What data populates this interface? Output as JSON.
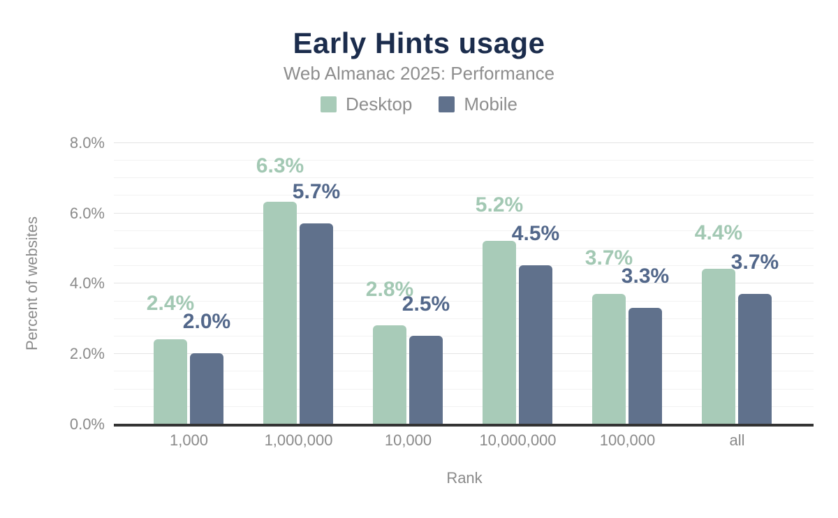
{
  "header": {
    "title": "Early Hints usage",
    "subtitle": "Web Almanac 2025: Performance"
  },
  "chart_data": {
    "type": "bar",
    "title": "Early Hints usage",
    "subtitle": "Web Almanac 2025: Performance",
    "xlabel": "Rank",
    "ylabel": "Percent of websites",
    "categories": [
      "1,000",
      "1,000,000",
      "10,000",
      "10,000,000",
      "100,000",
      "all"
    ],
    "series": [
      {
        "name": "Desktop",
        "color": "#a8cbb8",
        "label_color": "#a2c8b3",
        "values": [
          2.4,
          6.3,
          2.8,
          5.2,
          3.7,
          4.4
        ],
        "labels": [
          "2.4%",
          "6.3%",
          "2.8%",
          "5.2%",
          "3.7%",
          "4.4%"
        ]
      },
      {
        "name": "Mobile",
        "color": "#60718c",
        "label_color": "#52678a",
        "values": [
          2.0,
          5.7,
          2.5,
          4.5,
          3.3,
          3.7
        ],
        "labels": [
          "2.0%",
          "5.7%",
          "2.5%",
          "4.5%",
          "3.3%",
          "3.7%"
        ]
      }
    ],
    "ylim": [
      0,
      8
    ],
    "ytick_values": [
      0,
      2,
      4,
      6,
      8
    ],
    "ytick_labels": [
      "0.0%",
      "2.0%",
      "4.0%",
      "6.0%",
      "8.0%"
    ],
    "minor_grid_step": 0.5,
    "major_grid_step": 2.0,
    "grid": true,
    "legend_position": "top",
    "colors": {
      "title": "#1b2c4c",
      "subtitle": "#8d8d8d",
      "axis_text": "#8a8a8a",
      "axis_line": "#333333",
      "grid_major": "#e4e4e4",
      "grid_minor": "#f2f2f2"
    }
  }
}
